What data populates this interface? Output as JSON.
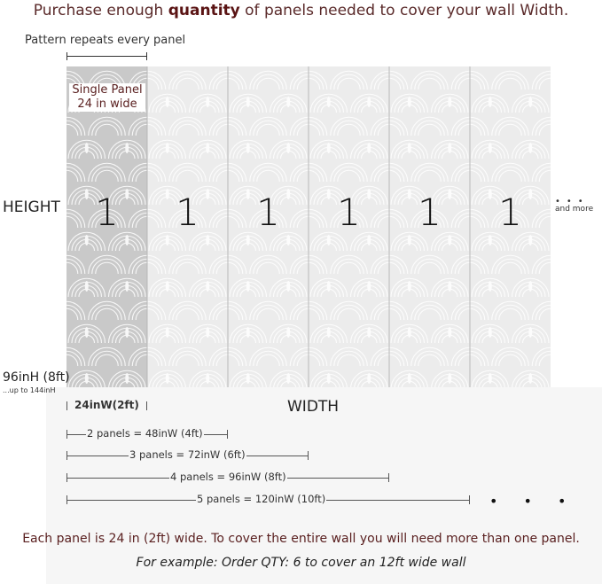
{
  "title": {
    "before": "Purchase enough ",
    "bold": "quantity",
    "after": " of panels needed to cover your wall Width."
  },
  "repeat_label": "Pattern repeats every panel",
  "single_panel": {
    "line1": "Single Panel",
    "line2": "24 in wide"
  },
  "panels": [
    "1",
    "1",
    "1",
    "1",
    "1",
    "1"
  ],
  "height_label": "HEIGHT",
  "and_more": "and more",
  "height_value": "96inH (8ft)",
  "height_max": "...up to 144inH",
  "width_label": "WIDTH",
  "dimensions": [
    "24inW(2ft)",
    "2 panels = 48inW (4ft)",
    "3 panels = 72inW (6ft)",
    "4 panels = 96inW (8ft)",
    "5 panels = 120inW (10ft)"
  ],
  "ellipsis": "• • •",
  "note": "Each panel is 24 in (2ft) wide. To cover the entire wall you will need more than one panel.",
  "example": "For example: Order QTY: 6 to cover an 12ft wide wall",
  "colors": {
    "accent": "#5a1414",
    "panel_highlight": "#c9c9c9",
    "panel": "#ececec"
  }
}
